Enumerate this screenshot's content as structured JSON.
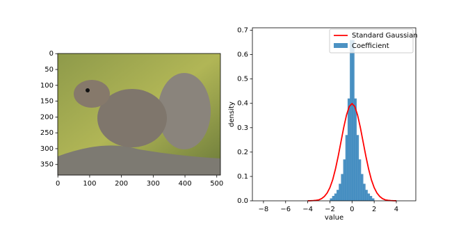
{
  "chart_data": [
    {
      "type": "image",
      "xlim": [
        -0.5,
        511.5
      ],
      "ylim": [
        383.5,
        -0.5
      ],
      "xticks": [
        0,
        100,
        200,
        300,
        400,
        500
      ],
      "yticks": [
        0,
        50,
        100,
        150,
        200,
        250,
        300,
        350
      ]
    },
    {
      "type": "histogram",
      "xlabel": "value",
      "ylabel": "density",
      "xlim": [
        -9.0,
        5.76
      ],
      "ylim": [
        0,
        0.71
      ],
      "xticks": [
        {
          "value": -8,
          "label": "−8"
        },
        {
          "value": -6,
          "label": "−6"
        },
        {
          "value": -4,
          "label": "−4"
        },
        {
          "value": -2,
          "label": "−2"
        },
        0,
        2,
        4
      ],
      "yticks": [
        {
          "value": 0,
          "label": "0.0"
        },
        0.1,
        0.2,
        0.3,
        0.4,
        0.5,
        0.6,
        0.7
      ],
      "legend": "upper right",
      "series": [
        {
          "name": "Standard Gaussian",
          "type": "line",
          "color": "#ff0000",
          "x": [
            -4,
            -3.75,
            -3.5,
            -3.25,
            -3,
            -2.75,
            -2.5,
            -2.25,
            -2,
            -1.75,
            -1.5,
            -1.25,
            -1,
            -0.75,
            -0.5,
            -0.25,
            0,
            0.25,
            0.5,
            0.75,
            1,
            1.25,
            1.5,
            1.75,
            2,
            2.25,
            2.5,
            2.75,
            3,
            3.25,
            3.5,
            3.75,
            4
          ],
          "values": [
            0.0001,
            0.0004,
            0.001,
            0.002,
            0.004,
            0.009,
            0.018,
            0.032,
            0.054,
            0.086,
            0.13,
            0.183,
            0.242,
            0.301,
            0.352,
            0.387,
            0.399,
            0.387,
            0.352,
            0.301,
            0.242,
            0.183,
            0.13,
            0.086,
            0.054,
            0.032,
            0.018,
            0.009,
            0.004,
            0.002,
            0.001,
            0.0004,
            0.0001
          ]
        },
        {
          "name": "Coefficient",
          "type": "histogram",
          "color": "#1f77b4",
          "bins": [
            -2,
            -1.8,
            -1.6,
            -1.4,
            -1.2,
            -1,
            -0.8,
            -0.6,
            -0.4,
            -0.2,
            0,
            0.2,
            0.4,
            0.6,
            0.8,
            1,
            1.2,
            1.4,
            1.6,
            1.8,
            2
          ],
          "values": [
            0.01,
            0.02,
            0.03,
            0.045,
            0.07,
            0.11,
            0.17,
            0.27,
            0.42,
            0.66,
            0.66,
            0.42,
            0.27,
            0.17,
            0.11,
            0.07,
            0.045,
            0.03,
            0.02,
            0.01
          ]
        }
      ]
    }
  ]
}
